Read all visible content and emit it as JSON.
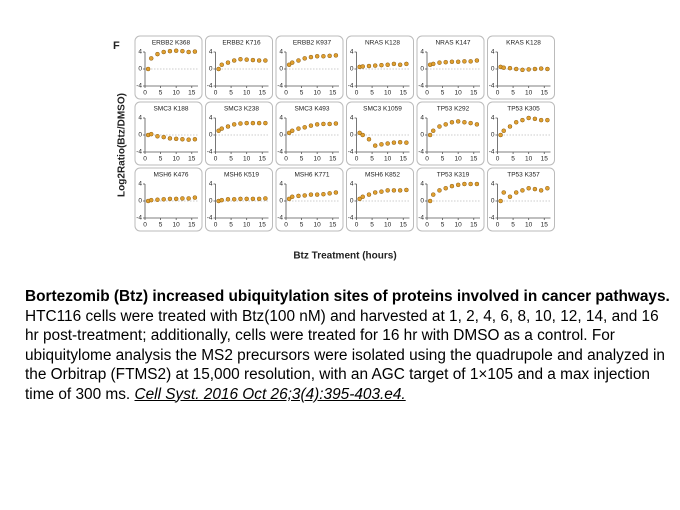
{
  "figure": {
    "panel_label": "F",
    "ylabel": "Log2Ratio(Btz/DMSO)",
    "xlabel": "Btz Treatment (hours)"
  },
  "chart_data": [
    {
      "type": "scatter",
      "title": "ERBB2 K368",
      "x": [
        1,
        2,
        4,
        6,
        8,
        10,
        12,
        14,
        16
      ],
      "values": [
        0,
        2.5,
        3.5,
        4,
        4.2,
        4.3,
        4.2,
        4,
        4.1
      ],
      "color": "#e0a030",
      "xlim": [
        0,
        17
      ],
      "ylim": [
        -4,
        4
      ],
      "xticks": [
        0,
        5,
        10,
        15
      ],
      "yticks": [
        -4,
        0,
        4
      ]
    },
    {
      "type": "scatter",
      "title": "ERBB2 K716",
      "x": [
        1,
        2,
        4,
        6,
        8,
        10,
        12,
        14,
        16
      ],
      "values": [
        0,
        1,
        1.5,
        2,
        2.3,
        2.2,
        2.1,
        2,
        2
      ],
      "color": "#e0a030",
      "xlim": [
        0,
        17
      ],
      "ylim": [
        -4,
        4
      ],
      "xticks": [
        0,
        5,
        10,
        15
      ],
      "yticks": [
        -4,
        0,
        4
      ]
    },
    {
      "type": "scatter",
      "title": "ERBB2 K937",
      "x": [
        1,
        2,
        4,
        6,
        8,
        10,
        12,
        14,
        16
      ],
      "values": [
        1,
        1.5,
        2,
        2.5,
        2.8,
        3,
        3,
        3.1,
        3.2
      ],
      "color": "#e0a030",
      "xlim": [
        0,
        17
      ],
      "ylim": [
        -4,
        4
      ],
      "xticks": [
        0,
        5,
        10,
        15
      ],
      "yticks": [
        -4,
        0,
        4
      ]
    },
    {
      "type": "scatter",
      "title": "NRAS K128",
      "x": [
        1,
        2,
        4,
        6,
        8,
        10,
        12,
        14,
        16
      ],
      "values": [
        0.5,
        0.6,
        0.7,
        0.8,
        0.9,
        1,
        1.2,
        1,
        1.2
      ],
      "color": "#e0a030",
      "xlim": [
        0,
        17
      ],
      "ylim": [
        -4,
        4
      ],
      "xticks": [
        0,
        5,
        10,
        15
      ],
      "yticks": [
        -4,
        0,
        4
      ]
    },
    {
      "type": "scatter",
      "title": "NRAS K147",
      "x": [
        1,
        2,
        4,
        6,
        8,
        10,
        12,
        14,
        16
      ],
      "values": [
        1,
        1.2,
        1.5,
        1.6,
        1.7,
        1.7,
        1.8,
        1.8,
        2
      ],
      "color": "#e0a030",
      "xlim": [
        0,
        17
      ],
      "ylim": [
        -4,
        4
      ],
      "xticks": [
        0,
        5,
        10,
        15
      ],
      "yticks": [
        -4,
        0,
        4
      ]
    },
    {
      "type": "scatter",
      "title": "KRAS K128",
      "x": [
        1,
        2,
        4,
        6,
        8,
        10,
        12,
        14,
        16
      ],
      "values": [
        0.5,
        0.3,
        0.2,
        0,
        -0.2,
        -0.1,
        0,
        0.1,
        0
      ],
      "color": "#e0a030",
      "xlim": [
        0,
        17
      ],
      "ylim": [
        -4,
        4
      ],
      "xticks": [
        0,
        5,
        10,
        15
      ],
      "yticks": [
        -4,
        0,
        4
      ]
    },
    {
      "type": "scatter",
      "title": "SMC3 K188",
      "x": [
        1,
        2,
        4,
        6,
        8,
        10,
        12,
        14,
        16
      ],
      "values": [
        0,
        0.2,
        -0.3,
        -0.5,
        -0.8,
        -0.9,
        -1,
        -1.1,
        -1
      ],
      "color": "#e0a030",
      "xlim": [
        0,
        17
      ],
      "ylim": [
        -4,
        4
      ],
      "xticks": [
        0,
        5,
        10,
        15
      ],
      "yticks": [
        -4,
        0,
        4
      ]
    },
    {
      "type": "scatter",
      "title": "SMC3 K238",
      "x": [
        1,
        2,
        4,
        6,
        8,
        10,
        12,
        14,
        16
      ],
      "values": [
        1,
        1.5,
        2,
        2.5,
        2.7,
        2.8,
        2.8,
        2.8,
        2.8
      ],
      "color": "#e0a030",
      "xlim": [
        0,
        17
      ],
      "ylim": [
        -4,
        4
      ],
      "xticks": [
        0,
        5,
        10,
        15
      ],
      "yticks": [
        -4,
        0,
        4
      ]
    },
    {
      "type": "scatter",
      "title": "SMC3 K493",
      "x": [
        1,
        2,
        4,
        6,
        8,
        10,
        12,
        14,
        16
      ],
      "values": [
        0.5,
        1,
        1.5,
        1.8,
        2.2,
        2.5,
        2.6,
        2.6,
        2.7
      ],
      "color": "#e0a030",
      "xlim": [
        0,
        17
      ],
      "ylim": [
        -4,
        4
      ],
      "xticks": [
        0,
        5,
        10,
        15
      ],
      "yticks": [
        -4,
        0,
        4
      ]
    },
    {
      "type": "scatter",
      "title": "SMC3 K1059",
      "x": [
        1,
        2,
        4,
        6,
        8,
        10,
        12,
        14,
        16
      ],
      "values": [
        0.5,
        0,
        -1,
        -2.5,
        -2.2,
        -2,
        -1.8,
        -1.7,
        -1.8
      ],
      "color": "#e0a030",
      "xlim": [
        0,
        17
      ],
      "ylim": [
        -4,
        4
      ],
      "xticks": [
        0,
        5,
        10,
        15
      ],
      "yticks": [
        -4,
        0,
        4
      ]
    },
    {
      "type": "scatter",
      "title": "TP53 K292",
      "x": [
        1,
        2,
        4,
        6,
        8,
        10,
        12,
        14,
        16
      ],
      "values": [
        0,
        1,
        2,
        2.5,
        3,
        3.2,
        3,
        2.8,
        2.5
      ],
      "color": "#e0a030",
      "xlim": [
        0,
        17
      ],
      "ylim": [
        -4,
        4
      ],
      "xticks": [
        0,
        5,
        10,
        15
      ],
      "yticks": [
        -4,
        0,
        4
      ]
    },
    {
      "type": "scatter",
      "title": "TP53 K305",
      "x": [
        1,
        2,
        4,
        6,
        8,
        10,
        12,
        14,
        16
      ],
      "values": [
        0,
        1,
        2,
        3,
        3.5,
        4,
        3.8,
        3.5,
        3.5
      ],
      "color": "#e0a030",
      "xlim": [
        0,
        17
      ],
      "ylim": [
        -4,
        4
      ],
      "xticks": [
        0,
        5,
        10,
        15
      ],
      "yticks": [
        -4,
        0,
        4
      ]
    },
    {
      "type": "scatter",
      "title": "MSH6 K476",
      "x": [
        1,
        2,
        4,
        6,
        8,
        10,
        12,
        14,
        16
      ],
      "values": [
        0,
        0.2,
        0.3,
        0.4,
        0.5,
        0.5,
        0.6,
        0.6,
        0.8
      ],
      "color": "#e0a030",
      "xlim": [
        0,
        17
      ],
      "ylim": [
        -4,
        4
      ],
      "xticks": [
        0,
        5,
        10,
        15
      ],
      "yticks": [
        -4,
        0,
        4
      ]
    },
    {
      "type": "scatter",
      "title": "MSH6 K519",
      "x": [
        1,
        2,
        4,
        6,
        8,
        10,
        12,
        14,
        16
      ],
      "values": [
        0,
        0.2,
        0.4,
        0.4,
        0.5,
        0.5,
        0.5,
        0.5,
        0.6
      ],
      "color": "#e0a030",
      "xlim": [
        0,
        17
      ],
      "ylim": [
        -4,
        4
      ],
      "xticks": [
        0,
        5,
        10,
        15
      ],
      "yticks": [
        -4,
        0,
        4
      ]
    },
    {
      "type": "scatter",
      "title": "MSH6 K771",
      "x": [
        1,
        2,
        4,
        6,
        8,
        10,
        12,
        14,
        16
      ],
      "values": [
        0.5,
        1,
        1.2,
        1.3,
        1.5,
        1.5,
        1.6,
        1.8,
        2
      ],
      "color": "#e0a030",
      "xlim": [
        0,
        17
      ],
      "ylim": [
        -4,
        4
      ],
      "xticks": [
        0,
        5,
        10,
        15
      ],
      "yticks": [
        -4,
        0,
        4
      ]
    },
    {
      "type": "scatter",
      "title": "MSH6 K852",
      "x": [
        1,
        2,
        4,
        6,
        8,
        10,
        12,
        14,
        16
      ],
      "values": [
        0.5,
        1,
        1.5,
        2,
        2.2,
        2.5,
        2.5,
        2.5,
        2.6
      ],
      "color": "#e0a030",
      "xlim": [
        0,
        17
      ],
      "ylim": [
        -4,
        4
      ],
      "xticks": [
        0,
        5,
        10,
        15
      ],
      "yticks": [
        -4,
        0,
        4
      ]
    },
    {
      "type": "scatter",
      "title": "TP53 K319",
      "x": [
        1,
        2,
        4,
        6,
        8,
        10,
        12,
        14,
        16
      ],
      "values": [
        0,
        1.5,
        2.5,
        3,
        3.5,
        3.8,
        4,
        4,
        4
      ],
      "color": "#e0a030",
      "xlim": [
        0,
        17
      ],
      "ylim": [
        -4,
        4
      ],
      "xticks": [
        0,
        5,
        10,
        15
      ],
      "yticks": [
        -4,
        0,
        4
      ]
    },
    {
      "type": "scatter",
      "title": "TP53 K357",
      "x": [
        1,
        2,
        4,
        6,
        8,
        10,
        12,
        14,
        16
      ],
      "values": [
        0,
        2,
        1,
        2,
        2.5,
        3,
        2.8,
        2.5,
        3
      ],
      "color": "#e0a030",
      "xlim": [
        0,
        17
      ],
      "ylim": [
        -4,
        4
      ],
      "xticks": [
        0,
        5,
        10,
        15
      ],
      "yticks": [
        -4,
        0,
        4
      ]
    }
  ],
  "caption": {
    "heading": "Bortezomib (Btz) increased ubiquitylation sites of proteins involved in cancer pathways.",
    "body": " HTC116 cells were treated with Btz(100 nM) and harvested at 1, 2, 4, 6, 8, 10, 12, 14, and 16 hr post-treatment; additionally, cells were treated for 16 hr with DMSO as a control. For ubiquitylome analysis the MS2 precursors were isolated using the quadrupole and analyzed in the Orbitrap (FTMS2) at 15,000 resolution, with an AGC target of 1×105 and a max injection time of 300 ms. ",
    "citation": "Cell Syst. 2016 Oct 26;3(4):395-403.e4."
  }
}
